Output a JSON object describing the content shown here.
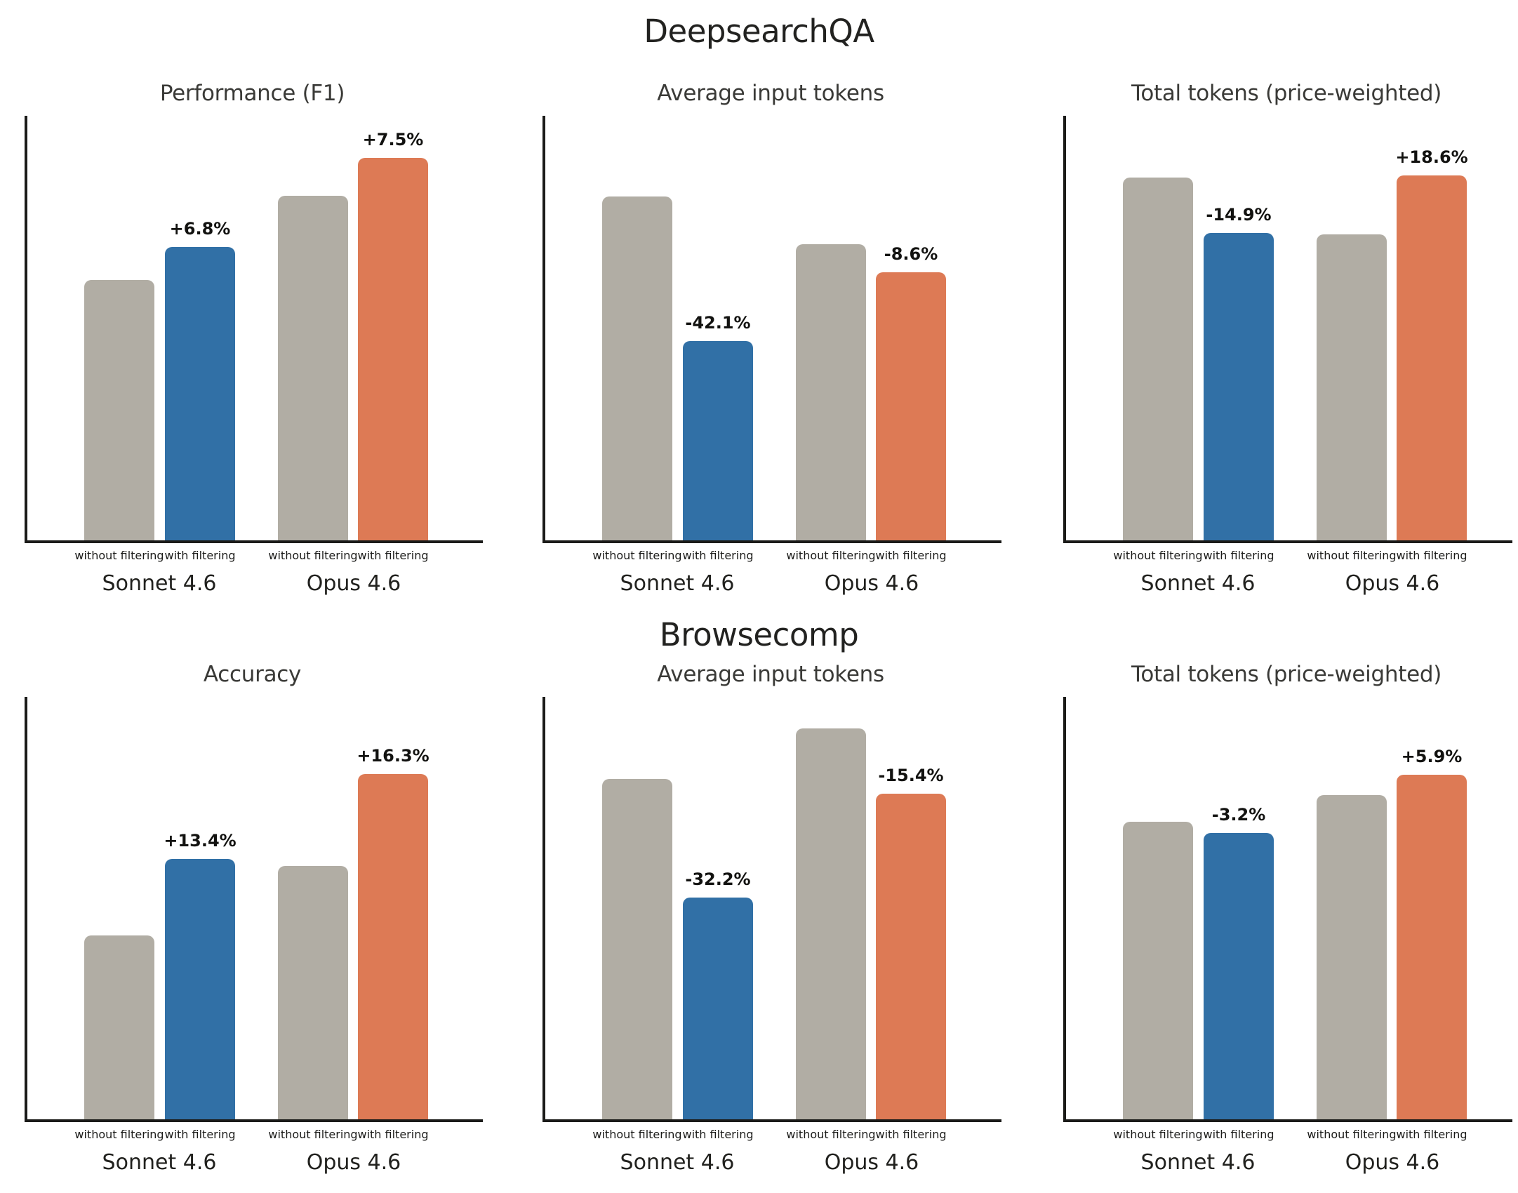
{
  "sections": [
    {
      "title": "DeepsearchQA"
    },
    {
      "title": "Browsecomp"
    }
  ],
  "colors": {
    "background": "#ffffff",
    "without_filtering_bar": "#b1ada4",
    "with_filtering_sonnet_bar": "#3170a6",
    "with_filtering_opus_bar": "#dd7a55",
    "axis": "#1b1b19",
    "annotation_text": "#121210",
    "title_text": "#222220",
    "chart_title_text": "#3a3a37"
  },
  "chart_data": [
    {
      "section": "DeepsearchQA",
      "type": "bar",
      "title": "Performance (F1)",
      "groups": [
        "Sonnet 4.6",
        "Opus 4.6"
      ],
      "series": [
        {
          "name": "without filtering",
          "values": [
            0.613,
            0.812
          ]
        },
        {
          "name": "with filtering",
          "values": [
            0.691,
            0.901
          ]
        }
      ],
      "annotations": [
        {
          "group": "Sonnet 4.6",
          "series": "with filtering",
          "text": "+6.8%"
        },
        {
          "group": "Opus 4.6",
          "series": "with filtering",
          "text": "+7.5%"
        }
      ],
      "y_axis": {
        "tick_labels_visible": false,
        "range_norm": [
          0,
          1
        ]
      },
      "legend": "none"
    },
    {
      "section": "DeepsearchQA",
      "type": "bar",
      "title": "Average input tokens",
      "groups": [
        "Sonnet 4.6",
        "Opus 4.6"
      ],
      "series": [
        {
          "name": "without filtering",
          "values": [
            0.81,
            0.698
          ]
        },
        {
          "name": "with filtering",
          "values": [
            0.469,
            0.631
          ]
        }
      ],
      "annotations": [
        {
          "group": "Sonnet 4.6",
          "series": "with filtering",
          "text": "-42.1%"
        },
        {
          "group": "Opus 4.6",
          "series": "with filtering",
          "text": "-8.6%"
        }
      ],
      "y_axis": {
        "tick_labels_visible": false,
        "range_norm": [
          0,
          1
        ]
      },
      "legend": "none"
    },
    {
      "section": "DeepsearchQA",
      "type": "bar",
      "title": "Total tokens (price-weighted)",
      "groups": [
        "Sonnet 4.6",
        "Opus 4.6"
      ],
      "series": [
        {
          "name": "without filtering",
          "values": [
            0.854,
            0.721
          ]
        },
        {
          "name": "with filtering",
          "values": [
            0.724,
            0.86
          ]
        }
      ],
      "annotations": [
        {
          "group": "Sonnet 4.6",
          "series": "with filtering",
          "text": "-14.9%"
        },
        {
          "group": "Opus 4.6",
          "series": "with filtering",
          "text": "+18.6%"
        }
      ],
      "y_axis": {
        "tick_labels_visible": false,
        "range_norm": [
          0,
          1
        ]
      },
      "legend": "none"
    },
    {
      "section": "Browsecomp",
      "type": "bar",
      "title": "Accuracy",
      "groups": [
        "Sonnet 4.6",
        "Opus 4.6"
      ],
      "series": [
        {
          "name": "without filtering",
          "values": [
            0.435,
            0.6
          ]
        },
        {
          "name": "with filtering",
          "values": [
            0.616,
            0.817
          ]
        }
      ],
      "annotations": [
        {
          "group": "Sonnet 4.6",
          "series": "with filtering",
          "text": "+13.4%"
        },
        {
          "group": "Opus 4.6",
          "series": "with filtering",
          "text": "+16.3%"
        }
      ],
      "y_axis": {
        "tick_labels_visible": false,
        "range_norm": [
          0,
          1
        ]
      },
      "legend": "none"
    },
    {
      "section": "Browsecomp",
      "type": "bar",
      "title": "Average input tokens",
      "groups": [
        "Sonnet 4.6",
        "Opus 4.6"
      ],
      "series": [
        {
          "name": "without filtering",
          "values": [
            0.806,
            0.925
          ]
        },
        {
          "name": "with filtering",
          "values": [
            0.525,
            0.771
          ]
        }
      ],
      "annotations": [
        {
          "group": "Sonnet 4.6",
          "series": "with filtering",
          "text": "-32.2%"
        },
        {
          "group": "Opus 4.6",
          "series": "with filtering",
          "text": "-15.4%"
        }
      ],
      "y_axis": {
        "tick_labels_visible": false,
        "range_norm": [
          0,
          1
        ]
      },
      "legend": "none"
    },
    {
      "section": "Browsecomp",
      "type": "bar",
      "title": "Total tokens (price-weighted)",
      "groups": [
        "Sonnet 4.6",
        "Opus 4.6"
      ],
      "series": [
        {
          "name": "without filtering",
          "values": [
            0.704,
            0.767
          ]
        },
        {
          "name": "with filtering",
          "values": [
            0.678,
            0.816
          ]
        }
      ],
      "annotations": [
        {
          "group": "Sonnet 4.6",
          "series": "with filtering",
          "text": "-3.2%"
        },
        {
          "group": "Opus 4.6",
          "series": "with filtering",
          "text": "+5.9%"
        }
      ],
      "y_axis": {
        "tick_labels_visible": false,
        "range_norm": [
          0,
          1
        ]
      },
      "legend": "none"
    }
  ]
}
